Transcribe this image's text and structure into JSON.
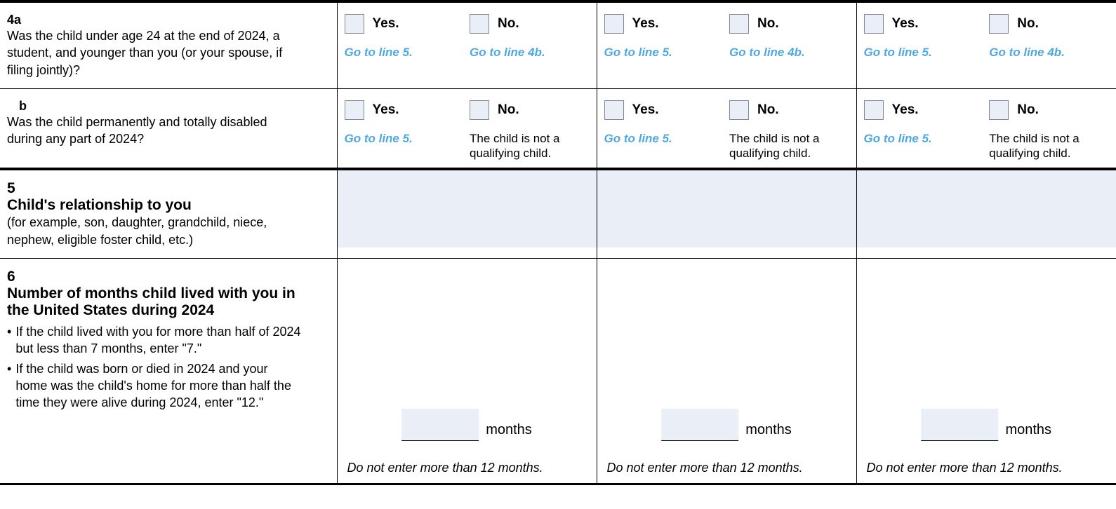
{
  "colors": {
    "link": "#4fa9e0",
    "fill": "#eaeef7",
    "border": "#000000",
    "boxborder": "#808694"
  },
  "labels": {
    "yes": "Yes.",
    "no": "No.",
    "goto5": "Go to line 5.",
    "goto4b": "Go to line 4b.",
    "notqc": "The child is not a qualifying child.",
    "months": "months",
    "months_note": "Do not enter more than 12 months."
  },
  "rows": {
    "r4a": {
      "num": "4a",
      "text": "Was the child under age 24 at the end of 2024, a student, and younger than you (or your spouse, if filing jointly)?"
    },
    "r4b": {
      "num": "b",
      "text": "Was the child permanently and totally disabled during any part of 2024?"
    },
    "r5": {
      "num": "5",
      "title": "Child's relationship to you",
      "sub": "(for example, son, daughter, grandchild, niece, nephew, eligible foster child, etc.)"
    },
    "r6": {
      "num": "6",
      "title": "Number of months child lived with you in the United States during 2024",
      "bullet1": "If the child lived with you for more than half of 2024 but less than 7 months, enter \"7.\"",
      "bullet2": "If the child was born or died in 2024 and your home was the child's home for more than half the time they were alive during 2024, enter \"12.\""
    }
  }
}
